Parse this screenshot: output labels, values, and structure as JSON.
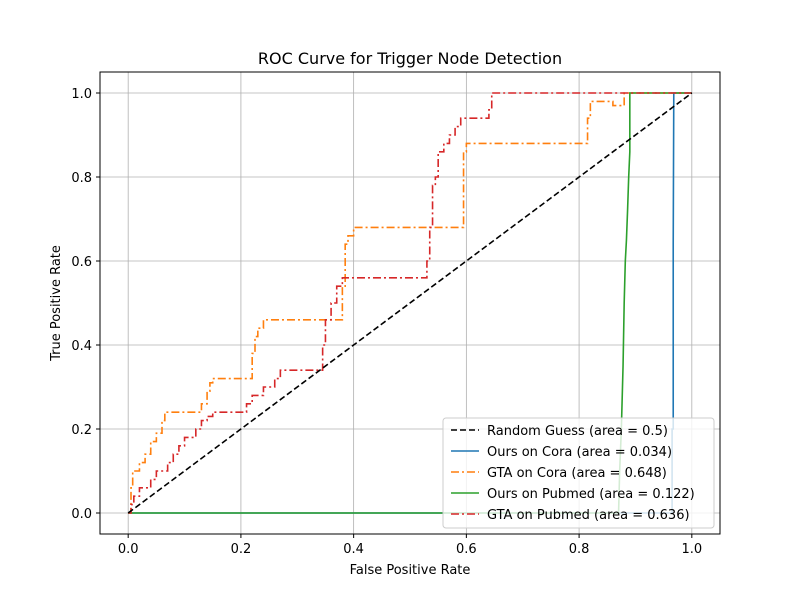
{
  "chart_data": {
    "type": "line",
    "title": "ROC Curve for Trigger Node Detection",
    "xlabel": "False Positive Rate",
    "ylabel": "True Positive Rate",
    "xlim": [
      -0.05,
      1.05
    ],
    "ylim": [
      -0.05,
      1.05
    ],
    "xticks": [
      "0.0",
      "0.2",
      "0.4",
      "0.6",
      "0.8",
      "1.0"
    ],
    "yticks": [
      "0.0",
      "0.2",
      "0.4",
      "0.6",
      "0.8",
      "1.0"
    ],
    "grid": true,
    "legend_position": "lower-right",
    "series": [
      {
        "name": "Random Guess (area = 0.5)",
        "color": "#000000",
        "style": "dashed",
        "x": [
          0,
          1
        ],
        "y": [
          0,
          1
        ]
      },
      {
        "name": "Ours on Cora (area = 0.034)",
        "color": "#1f77b4",
        "style": "solid",
        "x": [
          0,
          0.965,
          0.965,
          0.967,
          0.967,
          0.968,
          1.0
        ],
        "y": [
          0,
          0,
          0.2,
          0.2,
          0.64,
          1.0,
          1.0
        ]
      },
      {
        "name": "GTA on Cora (area = 0.648)",
        "color": "#ff7f0e",
        "style": "dashdot",
        "x": [
          0,
          0.005,
          0.005,
          0.008,
          0.008,
          0.02,
          0.02,
          0.03,
          0.03,
          0.04,
          0.04,
          0.05,
          0.05,
          0.06,
          0.06,
          0.065,
          0.065,
          0.13,
          0.13,
          0.14,
          0.14,
          0.145,
          0.145,
          0.15,
          0.15,
          0.22,
          0.22,
          0.225,
          0.225,
          0.23,
          0.23,
          0.24,
          0.24,
          0.38,
          0.38,
          0.385,
          0.385,
          0.39,
          0.39,
          0.4,
          0.4,
          0.595,
          0.595,
          0.6,
          0.6,
          0.815,
          0.815,
          0.82,
          0.82,
          0.86,
          0.86,
          0.88,
          0.88,
          1.0
        ],
        "y": [
          0,
          0,
          0.06,
          0.06,
          0.1,
          0.1,
          0.12,
          0.12,
          0.14,
          0.14,
          0.17,
          0.17,
          0.19,
          0.19,
          0.22,
          0.22,
          0.24,
          0.24,
          0.26,
          0.26,
          0.29,
          0.29,
          0.31,
          0.31,
          0.32,
          0.32,
          0.38,
          0.38,
          0.42,
          0.42,
          0.44,
          0.44,
          0.46,
          0.46,
          0.54,
          0.54,
          0.64,
          0.64,
          0.66,
          0.66,
          0.68,
          0.68,
          0.86,
          0.86,
          0.88,
          0.88,
          0.94,
          0.94,
          0.98,
          0.98,
          0.97,
          0.97,
          1.0,
          1.0
        ]
      },
      {
        "name": "Ours on Pubmed (area = 0.122)",
        "color": "#2ca02c",
        "style": "solid",
        "x": [
          0,
          0.87,
          0.872,
          0.875,
          0.878,
          0.88,
          0.882,
          0.884,
          0.886,
          0.888,
          0.89,
          0.89,
          1.0
        ],
        "y": [
          0,
          0,
          0.1,
          0.2,
          0.35,
          0.5,
          0.6,
          0.65,
          0.72,
          0.8,
          0.86,
          1.0,
          1.0
        ]
      },
      {
        "name": "GTA on Pubmed (area = 0.636)",
        "color": "#d62728",
        "style": "dashdot",
        "x": [
          0,
          0.005,
          0.005,
          0.01,
          0.01,
          0.02,
          0.02,
          0.04,
          0.04,
          0.05,
          0.05,
          0.07,
          0.07,
          0.08,
          0.08,
          0.09,
          0.09,
          0.1,
          0.1,
          0.12,
          0.12,
          0.13,
          0.13,
          0.14,
          0.14,
          0.15,
          0.15,
          0.16,
          0.16,
          0.21,
          0.21,
          0.22,
          0.22,
          0.24,
          0.24,
          0.26,
          0.26,
          0.27,
          0.27,
          0.345,
          0.345,
          0.35,
          0.35,
          0.36,
          0.36,
          0.37,
          0.37,
          0.38,
          0.38,
          0.4,
          0.4,
          0.53,
          0.53,
          0.535,
          0.535,
          0.54,
          0.54,
          0.545,
          0.545,
          0.55,
          0.55,
          0.56,
          0.56,
          0.57,
          0.57,
          0.58,
          0.58,
          0.59,
          0.59,
          0.64,
          0.64,
          0.645,
          0.645,
          1.0
        ],
        "y": [
          0,
          0,
          0.02,
          0.02,
          0.04,
          0.04,
          0.06,
          0.06,
          0.08,
          0.08,
          0.1,
          0.1,
          0.12,
          0.12,
          0.14,
          0.14,
          0.16,
          0.16,
          0.18,
          0.18,
          0.2,
          0.2,
          0.22,
          0.22,
          0.23,
          0.23,
          0.24,
          0.24,
          0.24,
          0.24,
          0.26,
          0.26,
          0.28,
          0.28,
          0.3,
          0.3,
          0.32,
          0.32,
          0.34,
          0.34,
          0.4,
          0.4,
          0.46,
          0.46,
          0.5,
          0.5,
          0.54,
          0.54,
          0.56,
          0.56,
          0.56,
          0.56,
          0.6,
          0.6,
          0.68,
          0.68,
          0.78,
          0.78,
          0.8,
          0.8,
          0.86,
          0.86,
          0.88,
          0.88,
          0.9,
          0.9,
          0.92,
          0.92,
          0.94,
          0.94,
          0.96,
          0.96,
          1.0,
          1.0
        ]
      }
    ]
  }
}
